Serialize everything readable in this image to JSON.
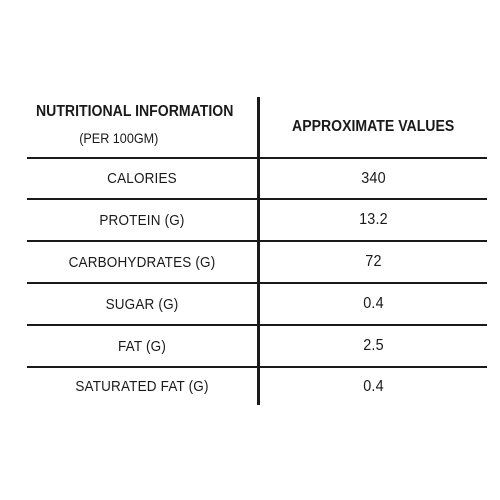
{
  "header": {
    "title": "NUTRITIONAL INFORMATION",
    "subtitle": "(PER 100GM)",
    "values_label": "APPROXIMATE VALUES"
  },
  "rows": [
    {
      "label": "CALORIES",
      "value": "340"
    },
    {
      "label": "PROTEIN (G)",
      "value": "13.2"
    },
    {
      "label": "CARBOHYDRATES (G)",
      "value": "72"
    },
    {
      "label": "SUGAR (G)",
      "value": "0.4"
    },
    {
      "label": "FAT (G)",
      "value": "2.5"
    },
    {
      "label": "SATURATED FAT (G)",
      "value": "0.4"
    }
  ]
}
